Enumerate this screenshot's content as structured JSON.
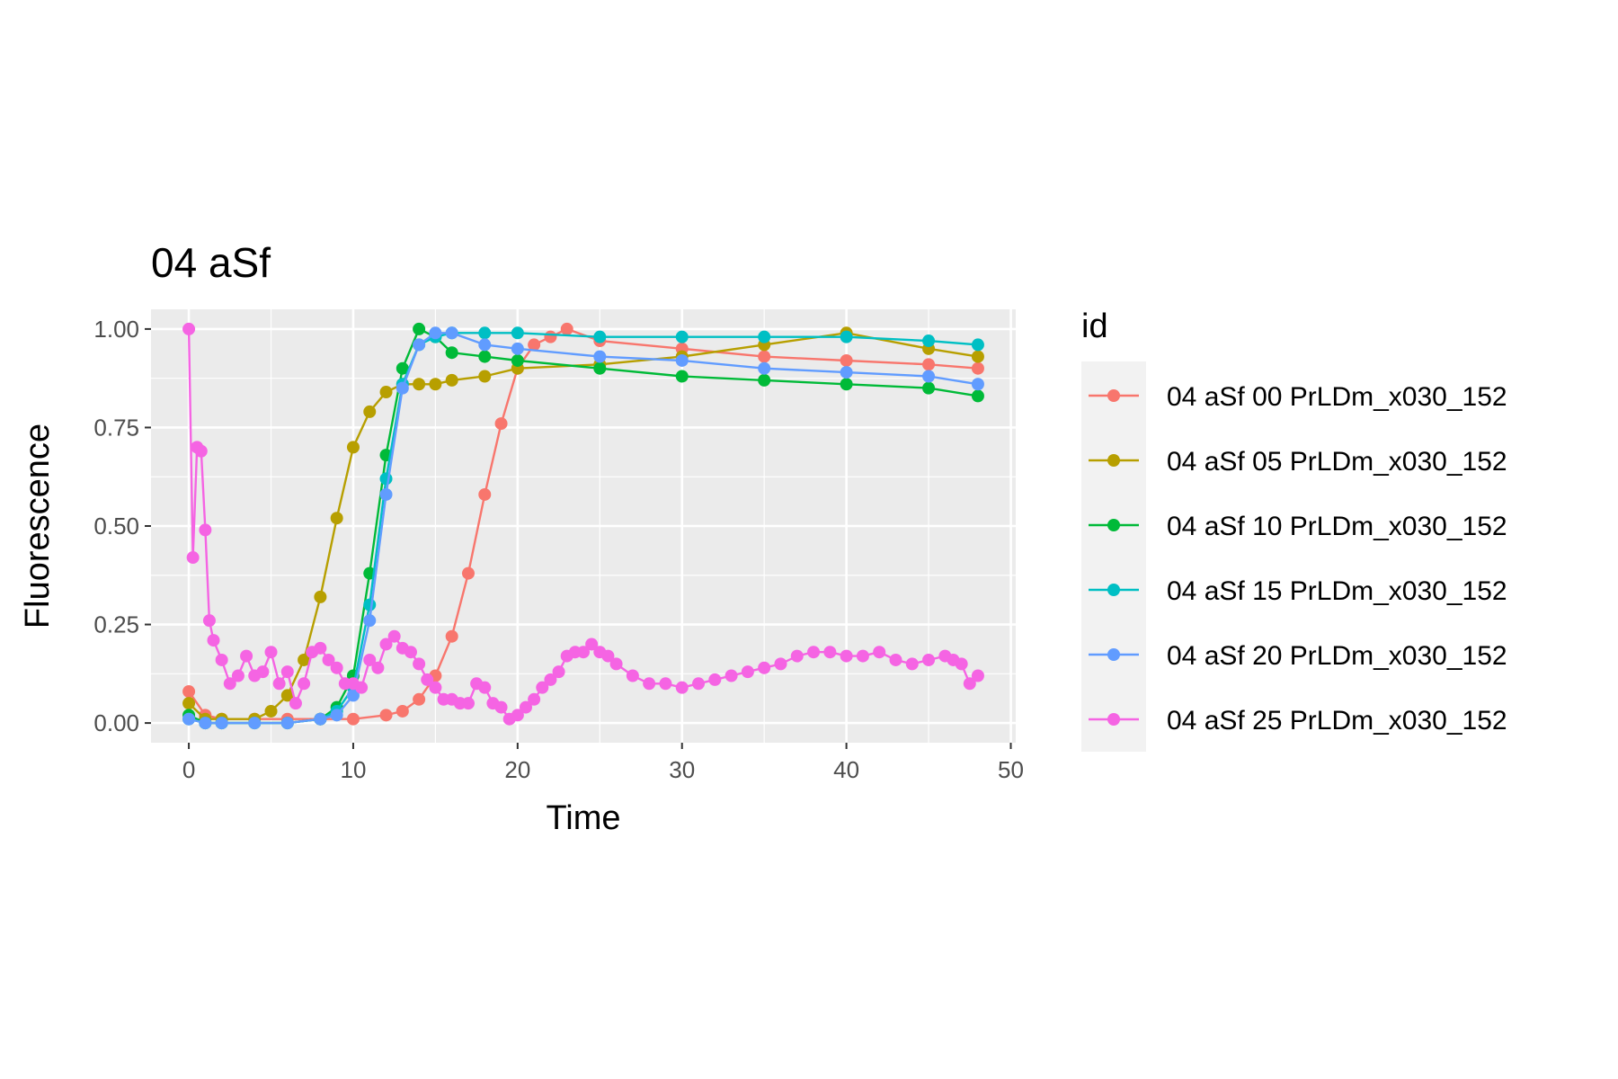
{
  "chart_data": {
    "type": "line",
    "title": "04 aSf",
    "xlabel": "Time",
    "ylabel": "Fluorescence",
    "xlim": [
      -2.3,
      50.3
    ],
    "ylim": [
      -0.05,
      1.05
    ],
    "x_ticks": [
      0,
      10,
      20,
      30,
      40,
      50
    ],
    "x_tick_labels": [
      "0",
      "10",
      "20",
      "30",
      "40",
      "50"
    ],
    "y_ticks": [
      0,
      0.25,
      0.5,
      0.75,
      1.0
    ],
    "y_tick_labels": [
      "0.00",
      "0.25",
      "0.50",
      "0.75",
      "1.00"
    ],
    "grid": true,
    "legend": {
      "title": "id",
      "placement": "right"
    },
    "series": [
      {
        "name": "04 aSf 00 PrLDm_x030_152",
        "color": "#F8766D",
        "x": [
          0,
          1,
          2,
          4,
          6,
          8,
          10,
          12,
          13,
          14,
          15,
          16,
          17,
          18,
          19,
          20,
          21,
          22,
          23,
          25,
          30,
          35,
          40,
          45,
          48
        ],
        "y": [
          0.08,
          0.02,
          0.01,
          0.01,
          0.01,
          0.01,
          0.01,
          0.02,
          0.03,
          0.06,
          0.12,
          0.22,
          0.38,
          0.58,
          0.76,
          0.9,
          0.96,
          0.98,
          1.0,
          0.97,
          0.95,
          0.93,
          0.92,
          0.91,
          0.9
        ]
      },
      {
        "name": "04 aSf 05 PrLDm_x030_152",
        "color": "#B79F00",
        "x": [
          0,
          1,
          2,
          4,
          5,
          6,
          7,
          8,
          9,
          10,
          11,
          12,
          13,
          14,
          15,
          16,
          18,
          20,
          25,
          30,
          35,
          40,
          45,
          48
        ],
        "y": [
          0.05,
          0.01,
          0.01,
          0.01,
          0.03,
          0.07,
          0.16,
          0.32,
          0.52,
          0.7,
          0.79,
          0.84,
          0.86,
          0.86,
          0.86,
          0.87,
          0.88,
          0.9,
          0.91,
          0.93,
          0.96,
          0.99,
          0.95,
          0.93
        ]
      },
      {
        "name": "04 aSf 10 PrLDm_x030_152",
        "color": "#00BA38",
        "x": [
          0,
          1,
          2,
          4,
          6,
          8,
          9,
          10,
          11,
          12,
          13,
          14,
          15,
          16,
          18,
          20,
          25,
          30,
          35,
          40,
          45,
          48
        ],
        "y": [
          0.02,
          0.0,
          0.0,
          0.0,
          0.0,
          0.01,
          0.04,
          0.12,
          0.38,
          0.68,
          0.9,
          1.0,
          0.98,
          0.94,
          0.93,
          0.92,
          0.9,
          0.88,
          0.87,
          0.86,
          0.85,
          0.83
        ]
      },
      {
        "name": "04 aSf 15 PrLDm_x030_152",
        "color": "#00BFC4",
        "x": [
          0,
          1,
          2,
          4,
          6,
          8,
          9,
          10,
          11,
          12,
          13,
          14,
          15,
          16,
          18,
          20,
          25,
          30,
          35,
          40,
          45,
          48
        ],
        "y": [
          0.01,
          0.0,
          0.0,
          0.0,
          0.0,
          0.01,
          0.03,
          0.09,
          0.3,
          0.62,
          0.86,
          0.96,
          0.98,
          0.99,
          0.99,
          0.99,
          0.98,
          0.98,
          0.98,
          0.98,
          0.97,
          0.96
        ]
      },
      {
        "name": "04 aSf 20 PrLDm_x030_152",
        "color": "#619CFF",
        "x": [
          0,
          1,
          2,
          4,
          6,
          8,
          9,
          10,
          11,
          12,
          13,
          14,
          15,
          16,
          18,
          20,
          25,
          30,
          35,
          40,
          45,
          48
        ],
        "y": [
          0.01,
          0.0,
          0.0,
          0.0,
          0.0,
          0.01,
          0.02,
          0.07,
          0.26,
          0.58,
          0.85,
          0.96,
          0.99,
          0.99,
          0.96,
          0.95,
          0.93,
          0.92,
          0.9,
          0.89,
          0.88,
          0.86
        ]
      },
      {
        "name": "04 aSf 25 PrLDm_x030_152",
        "color": "#F564E3",
        "x": [
          0,
          0.25,
          0.5,
          0.75,
          1,
          1.25,
          1.5,
          2,
          2.5,
          3,
          3.5,
          4,
          4.5,
          5,
          5.5,
          6,
          6.5,
          7,
          7.5,
          8,
          8.5,
          9,
          9.5,
          10,
          10.5,
          11,
          11.5,
          12,
          12.5,
          13,
          13.5,
          14,
          14.5,
          15,
          15.5,
          16,
          16.5,
          17,
          17.5,
          18,
          18.5,
          19,
          19.5,
          20,
          20.5,
          21,
          21.5,
          22,
          22.5,
          23,
          23.5,
          24,
          24.5,
          25,
          25.5,
          26,
          27,
          28,
          29,
          30,
          31,
          32,
          33,
          34,
          35,
          36,
          37,
          38,
          39,
          40,
          41,
          42,
          43,
          44,
          45,
          46,
          46.5,
          47,
          47.5,
          48
        ],
        "y": [
          1.0,
          0.42,
          0.7,
          0.69,
          0.49,
          0.26,
          0.21,
          0.16,
          0.1,
          0.12,
          0.17,
          0.12,
          0.13,
          0.18,
          0.1,
          0.13,
          0.05,
          0.1,
          0.18,
          0.19,
          0.16,
          0.14,
          0.1,
          0.1,
          0.09,
          0.16,
          0.14,
          0.2,
          0.22,
          0.19,
          0.18,
          0.15,
          0.11,
          0.09,
          0.06,
          0.06,
          0.05,
          0.05,
          0.1,
          0.09,
          0.05,
          0.04,
          0.01,
          0.02,
          0.04,
          0.06,
          0.09,
          0.11,
          0.13,
          0.17,
          0.18,
          0.18,
          0.2,
          0.18,
          0.17,
          0.15,
          0.12,
          0.1,
          0.1,
          0.09,
          0.1,
          0.11,
          0.12,
          0.13,
          0.14,
          0.15,
          0.17,
          0.18,
          0.18,
          0.17,
          0.17,
          0.18,
          0.16,
          0.15,
          0.16,
          0.17,
          0.16,
          0.15,
          0.1,
          0.12
        ]
      }
    ]
  }
}
